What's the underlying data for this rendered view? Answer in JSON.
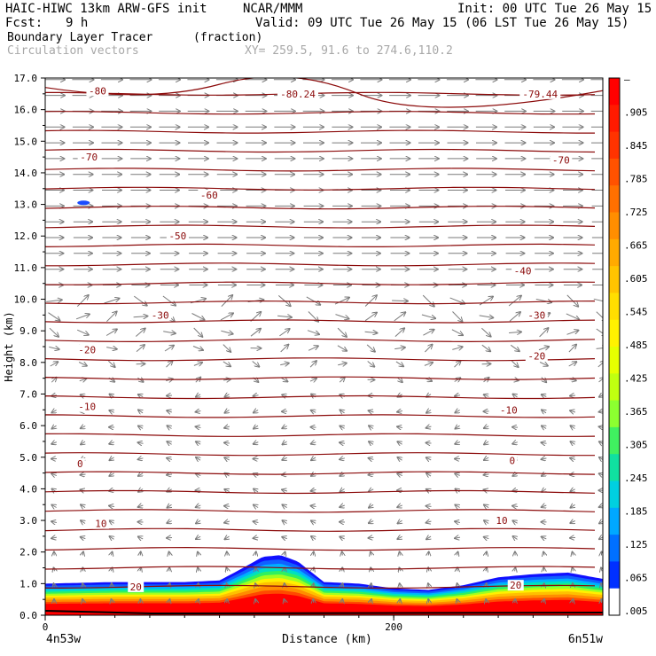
{
  "header": {
    "model": "HAIC-HIWC 13km ARW-GFS init",
    "center": "NCAR/MMM",
    "init": "Init: 00 UTC Tue 26 May 15",
    "fcst_label": "Fcst:",
    "fcst_value": "9 h",
    "valid": "Valid: 09 UTC Tue 26 May 15 (06 LST Tue 26 May 15)",
    "field": "Boundary Layer Tracer",
    "units": "(fraction)",
    "vectors": "Circulation vectors",
    "xy": "XY= 259.5, 91.6 to 274.6,110.2"
  },
  "chart_data": {
    "type": "heatmap",
    "ylabel": "Height (km)",
    "xlabel": "Distance (km)",
    "ylim": [
      0,
      17
    ],
    "y_ticks": [
      "0.0",
      "1.0",
      "2.0",
      "3.0",
      "4.0",
      "5.0",
      "6.0",
      "7.0",
      "8.0",
      "9.0",
      "10.0",
      "11.0",
      "12.0",
      "13.0",
      "14.0",
      "15.0",
      "16.0",
      "17.0"
    ],
    "x_ticks": [
      {
        "v": 0,
        "label": "0"
      },
      {
        "v": 200,
        "label": "200"
      }
    ],
    "x_range_km": [
      0,
      320
    ],
    "left_endpoint": "4n53w",
    "right_endpoint": "6n51w",
    "colorbar": {
      "labels": [
        "–",
        ".905",
        ".845",
        ".785",
        ".725",
        ".665",
        ".605",
        ".545",
        ".485",
        ".425",
        ".365",
        ".305",
        ".245",
        ".185",
        ".125",
        ".065",
        ".005"
      ],
      "colors": [
        "#ff0000",
        "#ff1a00",
        "#ff3300",
        "#ff5200",
        "#ff7000",
        "#ff8e00",
        "#ffaa00",
        "#ffc400",
        "#ffde00",
        "#fff200",
        "#e6ff00",
        "#c0ff10",
        "#8cff30",
        "#40f060",
        "#10e0a0",
        "#00d0e0",
        "#00a8ff",
        "#0070ff",
        "#0030ff",
        "#ffffff"
      ]
    },
    "layer_top_km": [
      [
        0,
        1.0
      ],
      [
        40,
        1.05
      ],
      [
        80,
        1.05
      ],
      [
        100,
        1.1
      ],
      [
        112,
        1.45
      ],
      [
        125,
        1.85
      ],
      [
        135,
        1.9
      ],
      [
        145,
        1.7
      ],
      [
        160,
        1.05
      ],
      [
        180,
        1.0
      ],
      [
        200,
        0.85
      ],
      [
        220,
        0.8
      ],
      [
        240,
        0.95
      ],
      [
        260,
        1.2
      ],
      [
        280,
        1.3
      ],
      [
        300,
        1.35
      ],
      [
        320,
        1.15
      ]
    ],
    "temperature_contours": [
      {
        "label": "-80",
        "y": 16.6,
        "x": 30
      },
      {
        "label": "-80.24",
        "y": 16.5,
        "x": 145
      },
      {
        "label": "-79.44",
        "y": 16.5,
        "x": 284
      },
      {
        "label": "-70",
        "y": 14.5,
        "x": 25
      },
      {
        "label": "-70",
        "y": 14.4,
        "x": 296
      },
      {
        "label": "-60",
        "y": 13.3,
        "x": 94
      },
      {
        "label": "-50",
        "y": 12.0,
        "x": 76
      },
      {
        "label": "-40",
        "y": 10.9,
        "x": 274
      },
      {
        "label": "-30",
        "y": 9.5,
        "x": 66
      },
      {
        "label": "-30",
        "y": 9.5,
        "x": 282
      },
      {
        "label": "-20",
        "y": 8.4,
        "x": 24
      },
      {
        "label": "-20",
        "y": 8.2,
        "x": 282
      },
      {
        "label": "-10",
        "y": 6.6,
        "x": 24
      },
      {
        "label": "-10",
        "y": 6.5,
        "x": 266
      },
      {
        "label": "0",
        "y": 4.8,
        "x": 20
      },
      {
        "label": "0",
        "y": 4.9,
        "x": 268
      },
      {
        "label": "10",
        "y": 2.9,
        "x": 32
      },
      {
        "label": "10",
        "y": 3.0,
        "x": 262
      },
      {
        "label": "20",
        "y": 0.9,
        "x": 52
      },
      {
        "label": "20",
        "y": 0.95,
        "x": 270
      }
    ]
  }
}
